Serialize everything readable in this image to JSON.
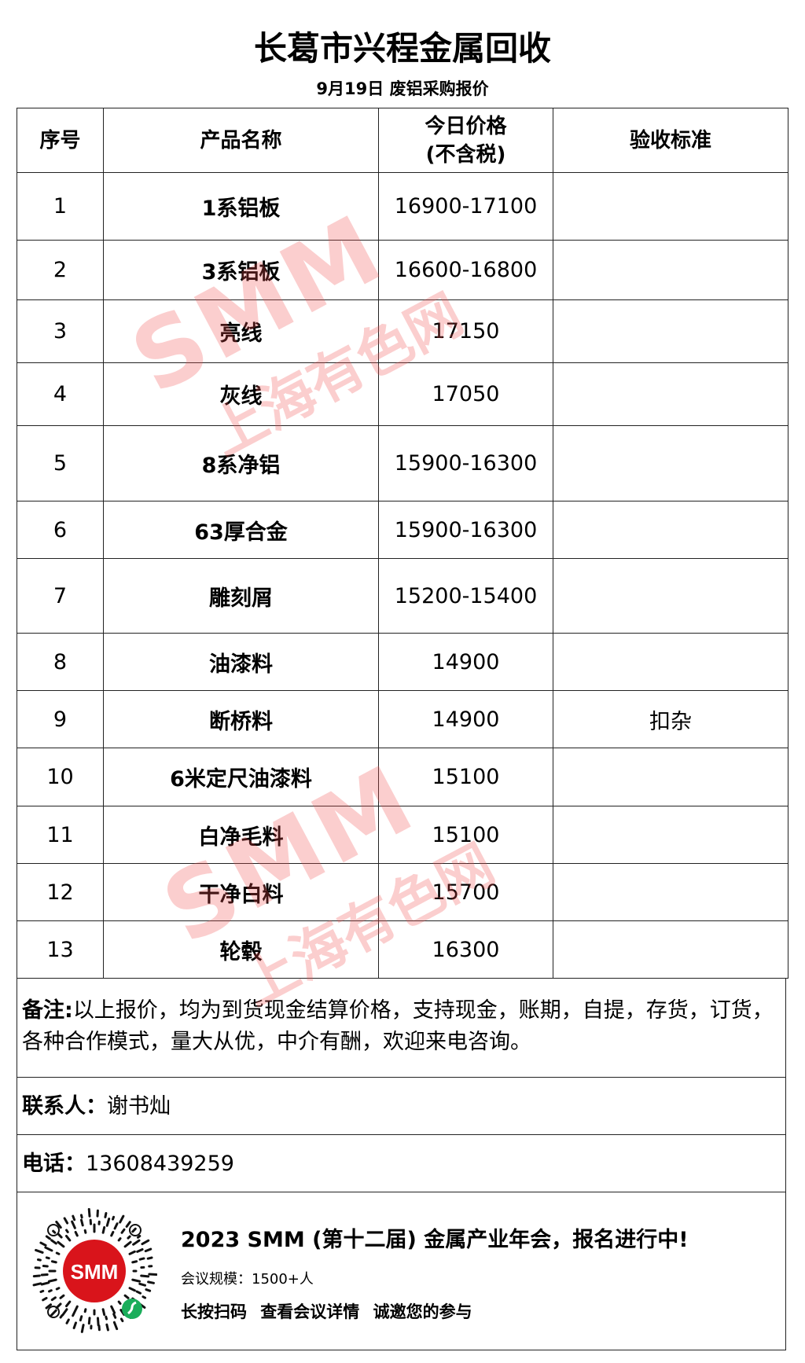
{
  "title": "长葛市兴程金属回收",
  "subtitle": "9月19日 废铝采购报价",
  "table": {
    "headers": [
      "序号",
      "产品名称",
      "今日价格",
      "(不含税)",
      "验收标准"
    ],
    "rows": [
      {
        "no": "1",
        "name": "1系铝板",
        "price": "16900-17100",
        "std": ""
      },
      {
        "no": "2",
        "name": "3系铝板",
        "price": "16600-16800",
        "std": ""
      },
      {
        "no": "3",
        "name": "亮线",
        "price": "17150",
        "std": ""
      },
      {
        "no": "4",
        "name": "灰线",
        "price": "17050",
        "std": ""
      },
      {
        "no": "5",
        "name": "8系净铝",
        "price": "15900-16300",
        "std": ""
      },
      {
        "no": "6",
        "name": "63厚合金",
        "price": "15900-16300",
        "std": ""
      },
      {
        "no": "7",
        "name": "雕刻屑",
        "price": "15200-15400",
        "std": ""
      },
      {
        "no": "8",
        "name": "油漆料",
        "price": "14900",
        "std": ""
      },
      {
        "no": "9",
        "name": "断桥料",
        "price": "14900",
        "std": "扣杂"
      },
      {
        "no": "10",
        "name": "6米定尺油漆料",
        "price": "15100",
        "std": ""
      },
      {
        "no": "11",
        "name": "白净毛料",
        "price": "15100",
        "std": ""
      },
      {
        "no": "12",
        "name": "干净白料",
        "price": "15700",
        "std": ""
      },
      {
        "no": "13",
        "name": "轮毂",
        "price": "16300",
        "std": ""
      }
    ]
  },
  "notes": {
    "label": "备注:",
    "text": "以上报价，均为到货现金结算价格，支持现金，账期，自提，存货，订货，各种合作模式，量大从优，中介有酬，欢迎来电咨询。"
  },
  "contact": {
    "label": "联系人：",
    "value": "谢书灿"
  },
  "phone": {
    "label": "电话：",
    "value": "13608439259"
  },
  "watermark": {
    "brand": "SMM",
    "cn": "上海有色网"
  },
  "footer": {
    "headline": "2023 SMM (第十二届) 金属产业年会，报名进行中!",
    "scale": "会议规模：1500+人",
    "cta": "长按扫码  查看会议详情   诚邀您的参与",
    "qr_logo": "SMM"
  },
  "colors": {
    "watermark": "#f05050",
    "brand_red": "#d9141b",
    "miniapp_green": "#1aad5a"
  }
}
